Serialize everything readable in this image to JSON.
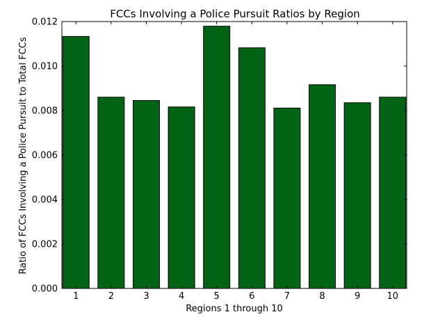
{
  "chart_data": {
    "type": "bar",
    "title": "FCCs Involving a Police Pursuit Ratios by Region",
    "xlabel": "Regions 1 through 10",
    "ylabel": "Ratio of FCCs Involving a Police Pursuit to Total FCCs",
    "categories": [
      "1",
      "2",
      "3",
      "4",
      "5",
      "6",
      "7",
      "8",
      "9",
      "10"
    ],
    "values": [
      0.01133,
      0.0086,
      0.00845,
      0.00816,
      0.01179,
      0.01082,
      0.00811,
      0.00916,
      0.00835,
      0.0086
    ],
    "ylim": [
      0,
      0.012
    ],
    "yticks": [
      "0.000",
      "0.002",
      "0.004",
      "0.006",
      "0.008",
      "0.010",
      "0.012"
    ],
    "bar_color": "#036417",
    "edge_color": "#000000",
    "grid": false,
    "legend": "none"
  }
}
